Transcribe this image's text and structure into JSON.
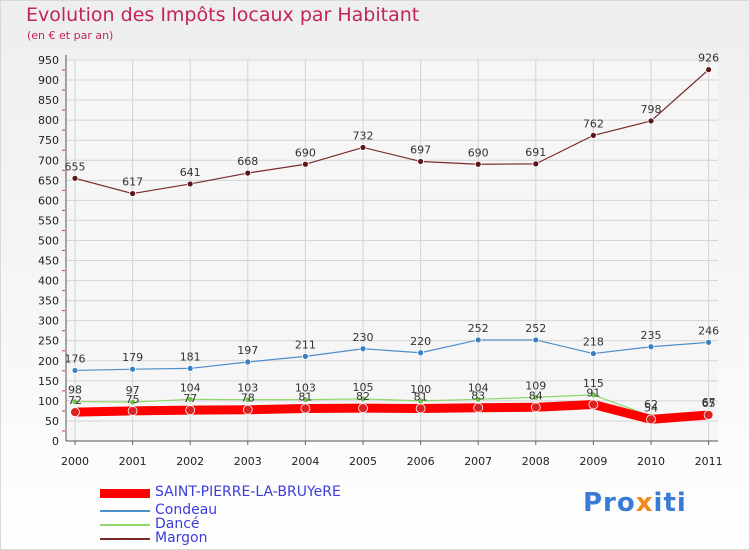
{
  "header": {
    "title": "Evolution des Impôts locaux par Habitant",
    "subtitle": "(en € et par an)"
  },
  "logo": {
    "text_a": "Pro",
    "text_b": "x",
    "text_c": "iti"
  },
  "chart_data": {
    "type": "line",
    "title": "Evolution des Impôts locaux par Habitant",
    "subtitle": "(en € et par an)",
    "xlabel": "",
    "ylabel": "",
    "categories": [
      "2000",
      "2001",
      "2002",
      "2003",
      "2004",
      "2005",
      "2006",
      "2007",
      "2008",
      "2009",
      "2010",
      "2011"
    ],
    "ylim": [
      0,
      950
    ],
    "yticks": [
      0,
      50,
      100,
      150,
      200,
      250,
      300,
      350,
      400,
      450,
      500,
      550,
      600,
      650,
      700,
      750,
      800,
      850,
      900,
      950
    ],
    "grid": true,
    "legend_position": "bottom-left",
    "series": [
      {
        "name": "SAINT-PIERRE-LA-BRUYeRE",
        "color": "#ff0000",
        "marker": "#dd2222",
        "thick": true,
        "values": [
          72,
          75,
          77,
          78,
          81,
          82,
          81,
          83,
          84,
          91,
          54,
          65
        ]
      },
      {
        "name": "Condeau",
        "color": "#4f8fc9",
        "marker": "#3a7fc0",
        "thick": false,
        "values": [
          176,
          179,
          181,
          197,
          211,
          230,
          220,
          252,
          252,
          218,
          235,
          246
        ]
      },
      {
        "name": "Dancé",
        "color": "#8fd86a",
        "marker": "#72c24e",
        "thick": false,
        "values": [
          98,
          97,
          104,
          103,
          103,
          105,
          100,
          104,
          109,
          115,
          62,
          67
        ]
      },
      {
        "name": "Margon",
        "color": "#7a2a2a",
        "marker": "#5a1616",
        "thick": false,
        "values": [
          655,
          617,
          641,
          668,
          690,
          732,
          697,
          690,
          691,
          762,
          798,
          926
        ]
      }
    ]
  }
}
